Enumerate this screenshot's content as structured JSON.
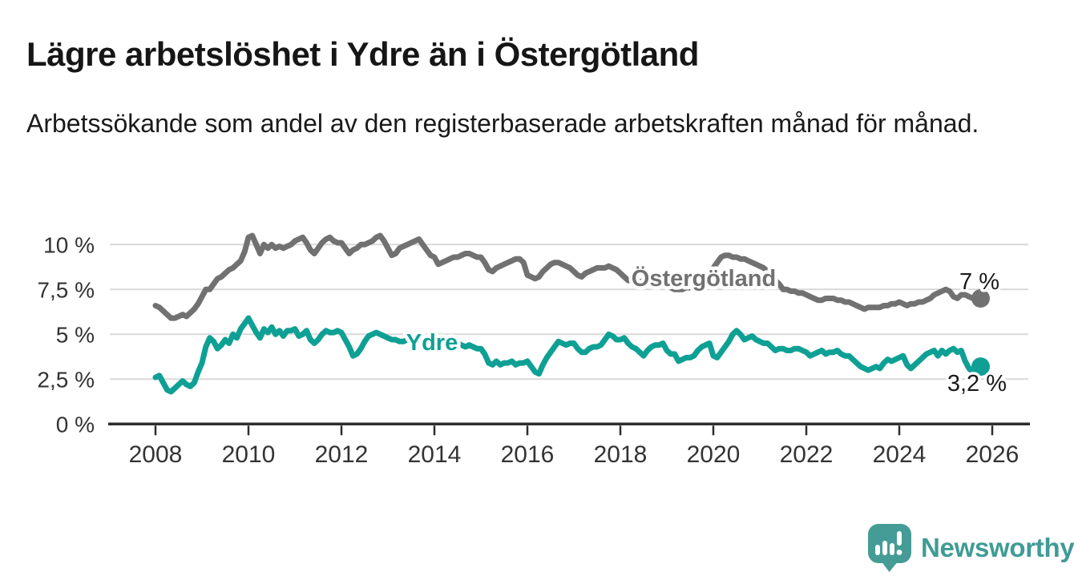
{
  "header": {
    "title": "Lägre arbetslöshet i Ydre än i Östergötland",
    "subtitle": "Arbetssökande som andel av den registerbaserade arbetskraften månad för månad."
  },
  "footer": {
    "brand": "Newsworthy"
  },
  "colors": {
    "ydre_line": "#0ea094",
    "ostergotland_line": "#717171",
    "axis": "#2d2d2d",
    "tick_text": "#333333",
    "gridline": "#d9d9d9",
    "end_label_text": "#1a1a1a",
    "logo_teal": "#459c96"
  },
  "chart_data": {
    "type": "line",
    "title": "Lägre arbetslöshet i Ydre än i Östergötland",
    "subtitle": "Arbetssökande som andel av den registerbaserade arbetskraften månad för månad.",
    "unit": "%",
    "x_start": {
      "year": 2008,
      "month": 1
    },
    "x_end": {
      "year": 2025,
      "month": 10
    },
    "frequency": "monthly",
    "x_ticks": [
      "2008",
      "2010",
      "2012",
      "2014",
      "2016",
      "2018",
      "2020",
      "2022",
      "2024",
      "2026"
    ],
    "y_ticks": [
      {
        "label": "0 %",
        "value": 0
      },
      {
        "label": "2,5 %",
        "value": 2.5
      },
      {
        "label": "5 %",
        "value": 5
      },
      {
        "label": "7,5 %",
        "value": 7.5
      },
      {
        "label": "10 %",
        "value": 10
      }
    ],
    "ylim": [
      0,
      11
    ],
    "grid": true,
    "legend_position": "inline-labels",
    "series": [
      {
        "id": "ostergotland",
        "name": "Östergötland",
        "color": "#717171",
        "end_label": "7 %",
        "end_value": 7.0,
        "values": [
          6.6,
          6.5,
          6.3,
          6.1,
          5.9,
          5.9,
          6.0,
          6.1,
          6.0,
          6.2,
          6.4,
          6.7,
          7.1,
          7.5,
          7.5,
          7.8,
          8.1,
          8.2,
          8.4,
          8.6,
          8.7,
          8.9,
          9.1,
          9.6,
          10.4,
          10.5,
          10.0,
          9.5,
          10.0,
          9.8,
          10.0,
          9.8,
          9.9,
          9.8,
          9.9,
          10.0,
          10.2,
          10.3,
          10.4,
          10.1,
          9.7,
          9.5,
          9.8,
          10.1,
          10.3,
          10.4,
          10.2,
          10.1,
          10.1,
          9.8,
          9.5,
          9.7,
          9.8,
          10.0,
          10.0,
          10.1,
          10.2,
          10.4,
          10.5,
          10.2,
          9.8,
          9.4,
          9.5,
          9.8,
          9.9,
          10.0,
          10.1,
          10.2,
          10.3,
          10.0,
          9.7,
          9.4,
          9.3,
          8.9,
          9.0,
          9.1,
          9.2,
          9.3,
          9.3,
          9.4,
          9.5,
          9.5,
          9.4,
          9.3,
          9.3,
          9.0,
          8.6,
          8.5,
          8.7,
          8.8,
          8.9,
          9.0,
          9.1,
          9.2,
          9.2,
          9.0,
          8.3,
          8.2,
          8.1,
          8.2,
          8.5,
          8.7,
          8.9,
          9.0,
          9.0,
          8.9,
          8.8,
          8.7,
          8.5,
          8.3,
          8.2,
          8.4,
          8.5,
          8.6,
          8.7,
          8.7,
          8.7,
          8.8,
          8.7,
          8.6,
          8.4,
          8.2,
          8.0,
          8.0,
          7.9,
          7.9,
          8.0,
          8.0,
          7.9,
          7.9,
          7.8,
          7.9,
          7.8,
          7.6,
          7.5,
          7.5,
          7.5,
          7.6,
          7.6,
          7.7,
          7.7,
          7.8,
          8.0,
          8.3,
          8.7,
          9.0,
          9.3,
          9.4,
          9.4,
          9.3,
          9.3,
          9.2,
          9.2,
          9.1,
          9.0,
          8.9,
          8.8,
          8.7,
          8.5,
          8.3,
          8.0,
          7.8,
          7.5,
          7.5,
          7.4,
          7.4,
          7.3,
          7.3,
          7.2,
          7.1,
          7.0,
          6.9,
          6.9,
          7.0,
          7.0,
          7.0,
          6.9,
          6.9,
          6.8,
          6.8,
          6.7,
          6.6,
          6.5,
          6.4,
          6.5,
          6.5,
          6.5,
          6.5,
          6.6,
          6.6,
          6.7,
          6.7,
          6.8,
          6.7,
          6.6,
          6.7,
          6.7,
          6.8,
          6.8,
          6.9,
          7.0,
          7.2,
          7.3,
          7.4,
          7.5,
          7.4,
          7.1,
          7.0,
          7.2,
          7.2,
          7.1,
          7.0,
          7.1,
          7.0
        ]
      },
      {
        "id": "ydre",
        "name": "Ydre",
        "color": "#0ea094",
        "end_label": "3,2 %",
        "end_value": 3.2,
        "values": [
          2.6,
          2.7,
          2.3,
          1.9,
          1.8,
          2.0,
          2.2,
          2.4,
          2.2,
          2.1,
          2.3,
          2.9,
          3.4,
          4.3,
          4.8,
          4.6,
          4.2,
          4.4,
          4.7,
          4.5,
          5.0,
          4.8,
          5.3,
          5.6,
          5.9,
          5.5,
          5.1,
          4.8,
          5.3,
          5.1,
          5.4,
          5.0,
          5.2,
          4.9,
          5.2,
          5.2,
          5.3,
          4.9,
          5.0,
          5.2,
          4.7,
          4.5,
          4.7,
          5.0,
          5.2,
          5.1,
          5.1,
          5.2,
          5.1,
          4.7,
          4.3,
          3.8,
          3.9,
          4.2,
          4.6,
          4.9,
          5.0,
          5.1,
          5.0,
          4.9,
          4.8,
          4.7,
          4.7,
          4.6,
          4.6,
          4.7,
          4.6,
          4.6,
          4.5,
          4.6,
          4.5,
          4.5,
          4.5,
          4.4,
          4.5,
          4.5,
          4.4,
          4.4,
          4.5,
          4.4,
          4.3,
          4.4,
          4.3,
          4.2,
          4.2,
          3.9,
          3.4,
          3.3,
          3.5,
          3.3,
          3.4,
          3.4,
          3.5,
          3.3,
          3.4,
          3.4,
          3.5,
          3.2,
          2.9,
          2.8,
          3.3,
          3.7,
          4.0,
          4.3,
          4.6,
          4.5,
          4.4,
          4.5,
          4.5,
          4.2,
          4.0,
          4.0,
          4.2,
          4.3,
          4.3,
          4.4,
          4.7,
          5.0,
          4.9,
          4.7,
          4.7,
          4.8,
          4.5,
          4.3,
          4.2,
          4.0,
          3.8,
          4.1,
          4.3,
          4.4,
          4.4,
          4.5,
          4.1,
          3.9,
          3.9,
          3.5,
          3.6,
          3.7,
          3.7,
          3.8,
          4.1,
          4.3,
          4.4,
          4.5,
          3.8,
          3.7,
          4.0,
          4.3,
          4.6,
          5.0,
          5.2,
          5.0,
          4.7,
          4.8,
          4.9,
          4.7,
          4.6,
          4.5,
          4.5,
          4.3,
          4.1,
          4.2,
          4.2,
          4.1,
          4.1,
          4.2,
          4.2,
          4.1,
          4.0,
          3.8,
          3.9,
          4.0,
          4.1,
          3.9,
          4.0,
          4.0,
          4.1,
          3.9,
          3.8,
          3.8,
          3.6,
          3.4,
          3.2,
          3.1,
          3.0,
          3.1,
          3.2,
          3.1,
          3.4,
          3.6,
          3.5,
          3.6,
          3.7,
          3.8,
          3.3,
          3.1,
          3.3,
          3.5,
          3.7,
          3.9,
          4.0,
          4.1,
          3.8,
          4.1,
          3.9,
          4.1,
          4.2,
          4.0,
          4.1,
          3.5,
          3.1,
          2.9,
          3.0,
          3.2
        ]
      }
    ]
  }
}
